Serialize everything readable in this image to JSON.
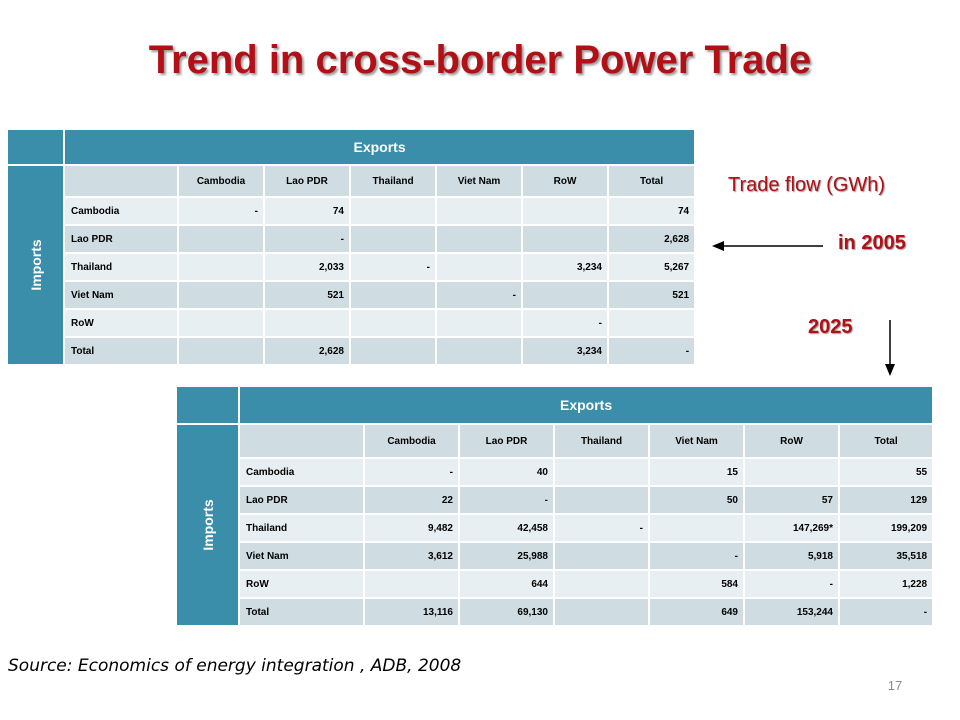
{
  "title": "Trend in cross-border Power Trade",
  "labels": {
    "trade_flow": "Trade flow (GWh)",
    "year_2005": "in 2005",
    "year_2025": "2025"
  },
  "source": "Source: Economics of energy integration , ADB, 2008",
  "page_number": "17",
  "table_2005": {
    "exports_label": "Exports",
    "imports_label": "Imports",
    "columns": [
      "",
      "Cambodia",
      "Lao PDR",
      "Thailand",
      "Viet Nam",
      "RoW",
      "Total"
    ],
    "rows": [
      [
        "Cambodia",
        "-",
        "74",
        "",
        "",
        "",
        "74"
      ],
      [
        "Lao PDR",
        "",
        "-",
        "",
        "",
        "",
        "2,628"
      ],
      [
        "Thailand",
        "",
        "2,033",
        "-",
        "",
        "3,234",
        "5,267"
      ],
      [
        "Viet Nam",
        "",
        "521",
        "",
        "-",
        "",
        "521"
      ],
      [
        "RoW",
        "",
        "",
        "",
        "",
        "-",
        ""
      ],
      [
        "Total",
        "",
        "2,628",
        "",
        "",
        "3,234",
        "-"
      ]
    ]
  },
  "table_2025": {
    "exports_label": "Exports",
    "imports_label": "Imports",
    "columns": [
      "",
      "Cambodia",
      "Lao PDR",
      "Thailand",
      "Viet Nam",
      "RoW",
      "Total"
    ],
    "rows": [
      [
        "Cambodia",
        "-",
        "40",
        "",
        "15",
        "",
        "55"
      ],
      [
        "Lao PDR",
        "22",
        "-",
        "",
        "50",
        "57",
        "129"
      ],
      [
        "Thailand",
        "9,482",
        "42,458",
        "-",
        "",
        "147,269*",
        "199,209"
      ],
      [
        "Viet Nam",
        "3,612",
        "25,988",
        "",
        "-",
        "5,918",
        "35,518"
      ],
      [
        "RoW",
        "",
        "644",
        "",
        "584",
        "-",
        "1,228"
      ],
      [
        "Total",
        "13,116",
        "69,130",
        "",
        "649",
        "153,244",
        "-"
      ]
    ]
  },
  "colors": {
    "title_red": "#b01016",
    "header_teal": "#3a8ea9",
    "row_light": "#e8eff2",
    "row_dark": "#cfdde2"
  }
}
